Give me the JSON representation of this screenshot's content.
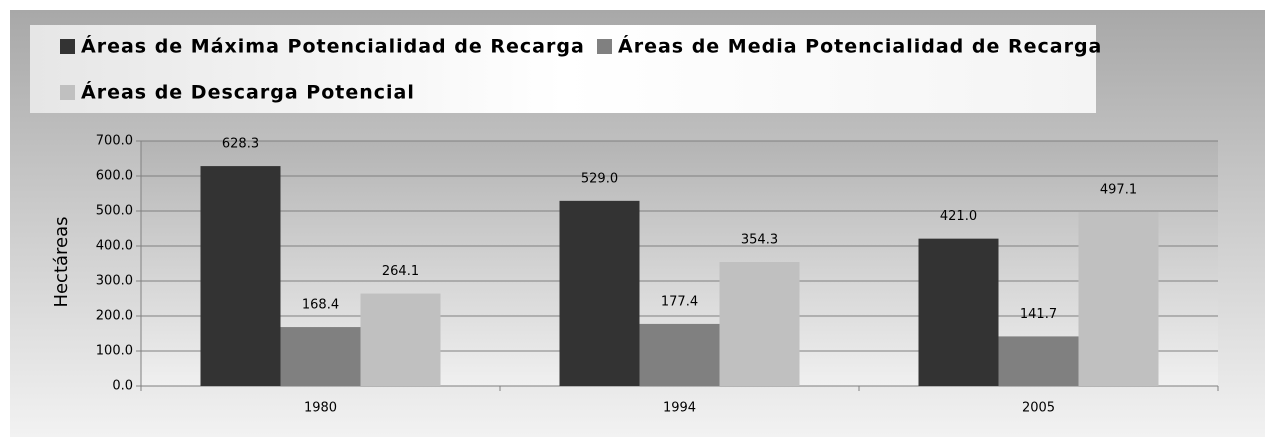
{
  "chart_data": {
    "type": "bar",
    "categories": [
      "1980",
      "1994",
      "2005"
    ],
    "series": [
      {
        "name": "Áreas de Máxima Potencialidad de Recarga",
        "color": "#333333",
        "values": [
          628.3,
          529.0,
          421.0
        ],
        "value_labels": [
          "628.3",
          "529.0",
          "421.0"
        ]
      },
      {
        "name": "Áreas de Media Potencialidad de Recarga",
        "color": "#808080",
        "values": [
          168.4,
          177.4,
          141.7
        ],
        "value_labels": [
          "168.4",
          "177.4",
          "141.7"
        ]
      },
      {
        "name": "Áreas de Descarga Potencial",
        "color": "#c0c0c0",
        "values": [
          264.1,
          354.3,
          497.1
        ],
        "value_labels": [
          "264.1",
          "354.3",
          "497.1"
        ]
      }
    ],
    "y_label": "Hectáreas",
    "ylim": [
      0,
      700
    ],
    "yticks": [
      {
        "value": 0,
        "label": "0.0"
      },
      {
        "value": 100,
        "label": "100.0"
      },
      {
        "value": 200,
        "label": "200.0"
      },
      {
        "value": 300,
        "label": "300.0"
      },
      {
        "value": 400,
        "label": "400.0"
      },
      {
        "value": 500,
        "label": "500.0"
      },
      {
        "value": 600,
        "label": "600.0"
      },
      {
        "value": 700,
        "label": "700.0"
      }
    ],
    "grid": true,
    "legend": "top"
  }
}
